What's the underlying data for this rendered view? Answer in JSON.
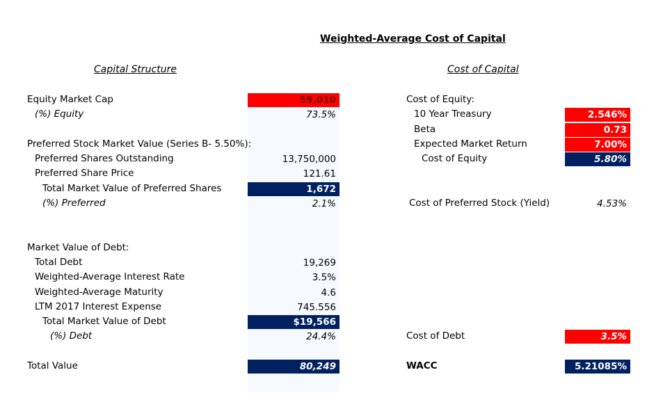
{
  "title": "Weighted-Average Cost of Capital",
  "capital_structure": {
    "heading": "Capital Structure",
    "equity_market_cap": {
      "label": "Equity Market Cap",
      "value": "59,010"
    },
    "pct_equity": {
      "label": "(%) Equity",
      "value": "73.5%"
    },
    "preferred_header": "Preferred Stock Market Value (Series B- 5.50%):",
    "preferred_shares_outstanding": {
      "label": "Preferred Shares Outstanding",
      "value": "13,750,000"
    },
    "preferred_share_price": {
      "label": "Preferred Share Price",
      "value": "121.61"
    },
    "total_preferred": {
      "label": "Total Market Value of Preferred Shares",
      "value": "1,672"
    },
    "pct_preferred": {
      "label": "(%) Preferred",
      "value": "2.1%"
    },
    "debt_header": "Market Value of Debt:",
    "total_debt": {
      "label": "Total Debt",
      "value": "19,269"
    },
    "wa_interest_rate": {
      "label": "Weighted-Average Interest Rate",
      "value": "3.5%"
    },
    "wa_maturity": {
      "label": "Weighted-Average Maturity",
      "value": "4.6"
    },
    "ltm_interest": {
      "label": "LTM 2017 Interest Expense",
      "value": "745.556"
    },
    "total_mv_debt": {
      "label": "Total Market Value of Debt",
      "value": "$19,566"
    },
    "pct_debt": {
      "label": "(%) Debt",
      "value": "24.4%"
    },
    "total_value": {
      "label": "Total Value",
      "value": "80,249"
    }
  },
  "cost_of_capital": {
    "heading": "Cost of Capital",
    "cost_of_equity_header": "Cost of Equity:",
    "treasury": {
      "label": "10 Year Treasury",
      "value": "2.546%"
    },
    "beta": {
      "label": "Beta",
      "value": "0.73"
    },
    "expected_return": {
      "label": "Expected Market Return",
      "value": "7.00%"
    },
    "cost_of_equity": {
      "label": "Cost of Equity",
      "value": "5.80%"
    },
    "cost_of_preferred": {
      "label": "Cost of Preferred Stock (Yield)",
      "value": "4.53%"
    },
    "cost_of_debt": {
      "label": "Cost of Debt",
      "value": "3.5%"
    },
    "wacc": {
      "label": "WACC",
      "value": "5.21085%"
    }
  },
  "colors": {
    "red": "#ff0000",
    "navy": "#002060"
  }
}
